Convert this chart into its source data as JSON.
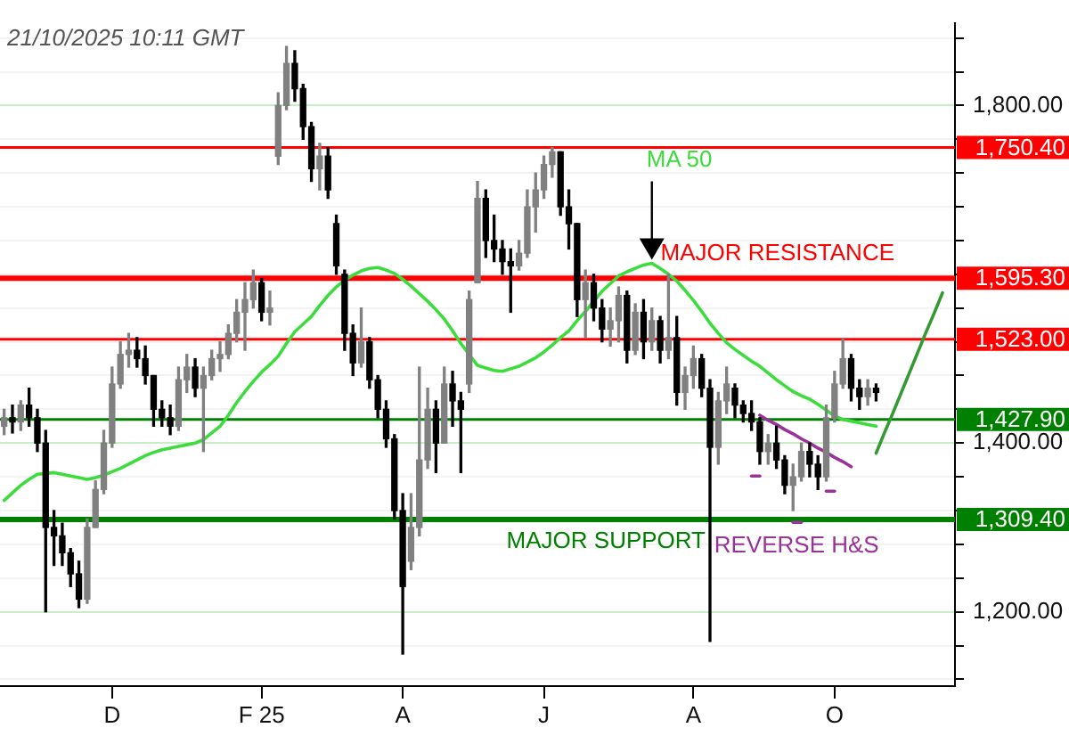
{
  "chart_data": {
    "type": "candlestick",
    "categories": [
      null,
      null,
      null,
      null,
      null,
      null,
      null,
      null,
      null,
      null,
      null,
      null,
      null,
      "D",
      null,
      null,
      null,
      null,
      null,
      null,
      null,
      null,
      null,
      null,
      null,
      null,
      null,
      null,
      null,
      null,
      null,
      "F 25",
      null,
      null,
      null,
      null,
      null,
      null,
      null,
      null,
      null,
      null,
      null,
      null,
      null,
      null,
      null,
      null,
      "A",
      null,
      null,
      null,
      null,
      null,
      null,
      null,
      null,
      null,
      null,
      null,
      null,
      null,
      null,
      null,
      null,
      "J",
      null,
      null,
      null,
      null,
      null,
      null,
      null,
      null,
      null,
      null,
      null,
      null,
      null,
      null,
      null,
      null,
      null,
      "A",
      null,
      null,
      null,
      null,
      null,
      null,
      null,
      null,
      null,
      null,
      null,
      null,
      null,
      null,
      null,
      null,
      "O",
      null,
      null,
      null,
      null,
      null,
      null,
      null,
      null,
      null,
      null,
      null,
      null,
      null,
      null
    ],
    "ohlc": [
      [
        1420,
        1440,
        1410,
        1430
      ],
      [
        1430,
        1445,
        1412,
        1425
      ],
      [
        1425,
        1450,
        1415,
        1445
      ],
      [
        1445,
        1465,
        1420,
        1430
      ],
      [
        1430,
        1440,
        1390,
        1400
      ],
      [
        1400,
        1415,
        1200,
        1300
      ],
      [
        1300,
        1320,
        1255,
        1290
      ],
      [
        1290,
        1305,
        1255,
        1270
      ],
      [
        1270,
        1275,
        1230,
        1245
      ],
      [
        1245,
        1260,
        1205,
        1215
      ],
      [
        1215,
        1310,
        1210,
        1300
      ],
      [
        1300,
        1355,
        1300,
        1345
      ],
      [
        1345,
        1415,
        1340,
        1400
      ],
      [
        1400,
        1490,
        1395,
        1470
      ],
      [
        1470,
        1520,
        1465,
        1505
      ],
      [
        1505,
        1530,
        1490,
        1510
      ],
      [
        1510,
        1525,
        1490,
        1500
      ],
      [
        1500,
        1515,
        1470,
        1480
      ],
      [
        1480,
        1480,
        1420,
        1440
      ],
      [
        1440,
        1450,
        1420,
        1430
      ],
      [
        1430,
        1445,
        1410,
        1420
      ],
      [
        1420,
        1490,
        1415,
        1475
      ],
      [
        1475,
        1505,
        1460,
        1490
      ],
      [
        1490,
        1500,
        1455,
        1465
      ],
      [
        1465,
        1490,
        1390,
        1480
      ],
      [
        1480,
        1510,
        1475,
        1500
      ],
      [
        1500,
        1520,
        1485,
        1505
      ],
      [
        1505,
        1540,
        1500,
        1530
      ],
      [
        1530,
        1570,
        1520,
        1555
      ],
      [
        1555,
        1590,
        1510,
        1570
      ],
      [
        1570,
        1605,
        1560,
        1590
      ],
      [
        1590,
        1595,
        1545,
        1555
      ],
      [
        1555,
        1580,
        1540,
        1560
      ],
      [
        1740,
        1815,
        1730,
        1800
      ],
      [
        1800,
        1870,
        1795,
        1850
      ],
      [
        1850,
        1865,
        1805,
        1820
      ],
      [
        1820,
        1825,
        1760,
        1775
      ],
      [
        1775,
        1780,
        1710,
        1725
      ],
      [
        1725,
        1755,
        1700,
        1740
      ],
      [
        1740,
        1750,
        1690,
        1700
      ],
      [
        1660,
        1670,
        1600,
        1610
      ],
      [
        1600,
        1605,
        1510,
        1530
      ],
      [
        1530,
        1540,
        1480,
        1495
      ],
      [
        1495,
        1560,
        1490,
        1520
      ],
      [
        1520,
        1525,
        1465,
        1475
      ],
      [
        1475,
        1480,
        1430,
        1440
      ],
      [
        1440,
        1450,
        1395,
        1405
      ],
      [
        1405,
        1410,
        1310,
        1320
      ],
      [
        1320,
        1340,
        1150,
        1230
      ],
      [
        1260,
        1340,
        1250,
        1300
      ],
      [
        1300,
        1490,
        1290,
        1380
      ],
      [
        1380,
        1465,
        1370,
        1440
      ],
      [
        1440,
        1450,
        1365,
        1400
      ],
      [
        1400,
        1490,
        1400,
        1470
      ],
      [
        1470,
        1485,
        1420,
        1450
      ],
      [
        1450,
        1460,
        1365,
        1440
      ],
      [
        1470,
        1580,
        1460,
        1570
      ],
      [
        1590,
        1710,
        1590,
        1690
      ],
      [
        1690,
        1700,
        1620,
        1640
      ],
      [
        1640,
        1670,
        1615,
        1630
      ],
      [
        1630,
        1640,
        1600,
        1615
      ],
      [
        1615,
        1630,
        1555,
        1610
      ],
      [
        1610,
        1640,
        1605,
        1625
      ],
      [
        1625,
        1700,
        1620,
        1680
      ],
      [
        1680,
        1720,
        1650,
        1700
      ],
      [
        1700,
        1740,
        1690,
        1730
      ],
      [
        1730,
        1750,
        1715,
        1745
      ],
      [
        1745,
        1745,
        1670,
        1680
      ],
      [
        1680,
        1700,
        1630,
        1660
      ],
      [
        1660,
        1660,
        1550,
        1570
      ],
      [
        1570,
        1605,
        1525,
        1590
      ],
      [
        1590,
        1600,
        1545,
        1560
      ],
      [
        1560,
        1570,
        1520,
        1535
      ],
      [
        1535,
        1560,
        1515,
        1545
      ],
      [
        1545,
        1585,
        1520,
        1575
      ],
      [
        1575,
        1580,
        1495,
        1510
      ],
      [
        1510,
        1565,
        1505,
        1555
      ],
      [
        1555,
        1570,
        1500,
        1520
      ],
      [
        1520,
        1560,
        1510,
        1545
      ],
      [
        1545,
        1550,
        1495,
        1510
      ],
      [
        1510,
        1600,
        1500,
        1525
      ],
      [
        1525,
        1550,
        1445,
        1460
      ],
      [
        1460,
        1490,
        1440,
        1480
      ],
      [
        1480,
        1515,
        1465,
        1500
      ],
      [
        1500,
        1505,
        1455,
        1465
      ],
      [
        1465,
        1475,
        1165,
        1395
      ],
      [
        1395,
        1460,
        1375,
        1450
      ],
      [
        1450,
        1490,
        1435,
        1470
      ],
      [
        1465,
        1470,
        1430,
        1445
      ],
      [
        1445,
        1450,
        1425,
        1435
      ],
      [
        1435,
        1450,
        1415,
        1425
      ],
      [
        1425,
        1430,
        1375,
        1390
      ],
      [
        1390,
        1410,
        1375,
        1400
      ],
      [
        1400,
        1420,
        1370,
        1380
      ],
      [
        1380,
        1385,
        1340,
        1350
      ],
      [
        1350,
        1375,
        1320,
        1360
      ],
      [
        1360,
        1400,
        1355,
        1390
      ],
      [
        1390,
        1400,
        1360,
        1375
      ],
      [
        1375,
        1385,
        1345,
        1360
      ],
      [
        1360,
        1445,
        1355,
        1430
      ],
      [
        1430,
        1485,
        1425,
        1470
      ],
      [
        1470,
        1523,
        1465,
        1500
      ],
      [
        1500,
        1505,
        1450,
        1465
      ],
      [
        1465,
        1475,
        1440,
        1455
      ],
      [
        1455,
        1475,
        1445,
        1465
      ],
      [
        1465,
        1470,
        1450,
        1460
      ],
      null,
      null,
      null,
      null,
      null,
      null,
      null,
      null,
      null
    ],
    "colors": [
      "#808080",
      "#000000",
      "#808080",
      "#000000",
      "#000000",
      "#000000",
      "#000000",
      "#000000",
      "#000000",
      "#000000",
      "#808080",
      "#808080",
      "#808080",
      "#808080",
      "#808080",
      "#808080",
      "#000000",
      "#000000",
      "#000000",
      "#000000",
      "#000000",
      "#808080",
      "#808080",
      "#000000",
      "#808080",
      "#808080",
      "#808080",
      "#808080",
      "#808080",
      "#808080",
      "#808080",
      "#000000",
      "#808080",
      "#808080",
      "#808080",
      "#000000",
      "#000000",
      "#000000",
      "#808080",
      "#000000",
      "#000000",
      "#000000",
      "#000000",
      "#808080",
      "#000000",
      "#000000",
      "#000000",
      "#000000",
      "#000000",
      "#808080",
      "#808080",
      "#808080",
      "#000000",
      "#808080",
      "#000000",
      "#000000",
      "#808080",
      "#808080",
      "#000000",
      "#000000",
      "#000000",
      "#000000",
      "#808080",
      "#808080",
      "#808080",
      "#808080",
      "#808080",
      "#000000",
      "#000000",
      "#000000",
      "#808080",
      "#000000",
      "#000000",
      "#808080",
      "#808080",
      "#000000",
      "#808080",
      "#000000",
      "#808080",
      "#000000",
      "#808080",
      "#000000",
      "#808080",
      "#808080",
      "#000000",
      "#000000",
      "#808080",
      "#808080",
      "#000000",
      "#000000",
      "#000000",
      "#000000",
      "#808080",
      "#000000",
      "#000000",
      "#808080",
      "#808080",
      "#000000",
      "#000000",
      "#808080",
      "#808080",
      "#808080",
      "#000000",
      "#000000",
      "#808080",
      "#000000",
      null,
      null,
      null,
      null,
      null,
      null,
      null,
      null,
      null
    ],
    "series": [
      {
        "type": "line",
        "name": "MA 50",
        "color": "#3ddc3d",
        "values": [
          1332,
          1341,
          1350,
          1357,
          1363,
          1364,
          1365,
          1363,
          1361,
          1359,
          1357,
          1359,
          1362,
          1366,
          1370,
          1375,
          1380,
          1385,
          1389,
          1392,
          1394,
          1396,
          1398,
          1400,
          1404,
          1412,
          1420,
          1433,
          1448,
          1461,
          1473,
          1484,
          1493,
          1503,
          1518,
          1532,
          1541,
          1550,
          1563,
          1575,
          1585,
          1593,
          1599,
          1604,
          1607,
          1608,
          1605,
          1601,
          1594,
          1586,
          1577,
          1568,
          1558,
          1547,
          1533,
          1518,
          1505,
          1492,
          1489,
          1486,
          1485,
          1488,
          1491,
          1496,
          1501,
          1508,
          1516,
          1525,
          1533,
          1545,
          1556,
          1568,
          1580,
          1589,
          1598,
          1603,
          1607,
          1611,
          1613,
          1607,
          1600,
          1592,
          1581,
          1569,
          1556,
          1542,
          1530,
          1519,
          1511,
          1504,
          1497,
          1491,
          1483,
          1475,
          1468,
          1461,
          1456,
          1452,
          1446,
          1439,
          1432,
          1428,
          1426,
          1424,
          1422,
          1420,
          null,
          null,
          null,
          null,
          null,
          null,
          null,
          null,
          null
        ]
      },
      {
        "type": "line",
        "color": "#993399",
        "values": [
          null,
          null,
          null,
          null,
          null,
          null,
          null,
          null,
          null,
          null,
          null,
          null,
          null,
          null,
          null,
          null,
          null,
          null,
          null,
          null,
          null,
          null,
          null,
          null,
          null,
          null,
          null,
          null,
          null,
          null,
          null,
          null,
          null,
          null,
          null,
          null,
          null,
          null,
          null,
          null,
          null,
          null,
          null,
          null,
          null,
          null,
          null,
          null,
          null,
          null,
          null,
          null,
          null,
          null,
          null,
          null,
          null,
          null,
          null,
          null,
          null,
          null,
          null,
          null,
          null,
          null,
          null,
          null,
          null,
          null,
          null,
          null,
          null,
          null,
          null,
          null,
          null,
          null,
          null,
          null,
          null,
          null,
          null,
          null,
          null,
          null,
          null,
          null,
          null,
          null,
          null,
          1433,
          1427,
          1422,
          1416,
          1411,
          1405,
          1400,
          1394,
          1389,
          1383,
          1378,
          1372,
          null,
          null,
          null,
          null,
          null,
          null,
          null,
          null,
          null,
          null,
          null,
          null
        ]
      },
      {
        "type": "line",
        "color": "#993399",
        "values": [
          null,
          null,
          null,
          null,
          null,
          null,
          null,
          null,
          null,
          null,
          null,
          null,
          null,
          null,
          null,
          null,
          null,
          null,
          null,
          null,
          null,
          null,
          null,
          null,
          null,
          null,
          null,
          null,
          null,
          null,
          null,
          null,
          null,
          null,
          null,
          null,
          null,
          null,
          null,
          null,
          null,
          null,
          null,
          null,
          null,
          null,
          null,
          null,
          null,
          null,
          null,
          null,
          null,
          null,
          null,
          null,
          null,
          null,
          null,
          null,
          null,
          null,
          null,
          null,
          null,
          null,
          null,
          null,
          null,
          null,
          null,
          null,
          null,
          null,
          null,
          null,
          null,
          null,
          null,
          null,
          null,
          null,
          null,
          null,
          null,
          null,
          null,
          null,
          null,
          null,
          1361,
          1361,
          null,
          null,
          null,
          null,
          null,
          null,
          null,
          null,
          null,
          null,
          null,
          null,
          null,
          null,
          null,
          null,
          null,
          null,
          null,
          null,
          null,
          null,
          null
        ]
      },
      {
        "type": "line",
        "name": "REVERSE H&S",
        "color": "#993399",
        "values": [
          null,
          null,
          null,
          null,
          null,
          null,
          null,
          null,
          null,
          null,
          null,
          null,
          null,
          null,
          null,
          null,
          null,
          null,
          null,
          null,
          null,
          null,
          null,
          null,
          null,
          null,
          null,
          null,
          null,
          null,
          null,
          null,
          null,
          null,
          null,
          null,
          null,
          null,
          null,
          null,
          null,
          null,
          null,
          null,
          null,
          null,
          null,
          null,
          null,
          null,
          null,
          null,
          null,
          null,
          null,
          null,
          null,
          null,
          null,
          null,
          null,
          null,
          null,
          null,
          null,
          null,
          null,
          null,
          null,
          null,
          null,
          null,
          null,
          null,
          null,
          null,
          null,
          null,
          null,
          null,
          null,
          null,
          null,
          null,
          null,
          null,
          null,
          null,
          null,
          null,
          null,
          null,
          null,
          null,
          null,
          1306,
          1306,
          null,
          null,
          null,
          null,
          null,
          null,
          null,
          null,
          null,
          null,
          null,
          null,
          null,
          null,
          null,
          null,
          null,
          null
        ]
      },
      {
        "type": "line",
        "color": "#993399",
        "values": [
          null,
          null,
          null,
          null,
          null,
          null,
          null,
          null,
          null,
          null,
          null,
          null,
          null,
          null,
          null,
          null,
          null,
          null,
          null,
          null,
          null,
          null,
          null,
          null,
          null,
          null,
          null,
          null,
          null,
          null,
          null,
          null,
          null,
          null,
          null,
          null,
          null,
          null,
          null,
          null,
          null,
          null,
          null,
          null,
          null,
          null,
          null,
          null,
          null,
          null,
          null,
          null,
          null,
          null,
          null,
          null,
          null,
          null,
          null,
          null,
          null,
          null,
          null,
          null,
          null,
          null,
          null,
          null,
          null,
          null,
          null,
          null,
          null,
          null,
          null,
          null,
          null,
          null,
          null,
          null,
          null,
          null,
          null,
          null,
          null,
          null,
          null,
          null,
          null,
          null,
          null,
          null,
          null,
          null,
          null,
          null,
          null,
          null,
          null,
          1343,
          1343,
          null,
          null,
          null,
          null,
          null,
          null,
          null,
          null,
          null,
          null,
          null,
          null,
          null,
          null
        ]
      },
      {
        "type": "line",
        "color": "#339933",
        "values": [
          null,
          null,
          null,
          null,
          null,
          null,
          null,
          null,
          null,
          null,
          null,
          null,
          null,
          null,
          null,
          null,
          null,
          null,
          null,
          null,
          null,
          null,
          null,
          null,
          null,
          null,
          null,
          null,
          null,
          null,
          null,
          null,
          null,
          null,
          null,
          null,
          null,
          null,
          null,
          null,
          null,
          null,
          null,
          null,
          null,
          null,
          null,
          null,
          null,
          null,
          null,
          null,
          null,
          null,
          null,
          null,
          null,
          null,
          null,
          null,
          null,
          null,
          null,
          null,
          null,
          null,
          null,
          null,
          null,
          null,
          null,
          null,
          null,
          null,
          null,
          null,
          null,
          null,
          null,
          null,
          null,
          null,
          null,
          null,
          null,
          null,
          null,
          null,
          null,
          null,
          null,
          null,
          null,
          null,
          null,
          null,
          null,
          null,
          null,
          null,
          null,
          null,
          null,
          null,
          null,
          1388,
          1412,
          1435,
          1459,
          1483,
          1507,
          1531,
          1554,
          1578,
          null
        ]
      }
    ],
    "ylim": [
      1112,
      1898
    ],
    "yticks": [
      {
        "value": 1120,
        "label": null
      },
      {
        "value": 1160,
        "label": null
      },
      {
        "value": 1200,
        "label": "1,200.00"
      },
      {
        "value": 1240,
        "label": null
      },
      {
        "value": 1280,
        "label": null
      },
      {
        "value": 1320,
        "label": null
      },
      {
        "value": 1360,
        "label": null
      },
      {
        "value": 1400,
        "label": "1,400.00"
      },
      {
        "value": 1440,
        "label": null
      },
      {
        "value": 1480,
        "label": null
      },
      {
        "value": 1520,
        "label": null
      },
      {
        "value": 1560,
        "label": null
      },
      {
        "value": 1600,
        "label": null
      },
      {
        "value": 1640,
        "label": null
      },
      {
        "value": 1680,
        "label": null
      },
      {
        "value": 1720,
        "label": null
      },
      {
        "value": 1760,
        "label": null
      },
      {
        "value": 1800,
        "label": "1,800.00"
      },
      {
        "value": 1840,
        "label": null
      },
      {
        "value": 1880,
        "label": null
      }
    ],
    "grid": "y",
    "ref_lines": [
      {
        "axis": "y",
        "value": 1750.4,
        "label": "1,750.40",
        "color": "#ff0000"
      },
      {
        "axis": "y",
        "value": 1595.3,
        "label": "1,595.30",
        "color": "#ff0000"
      },
      {
        "axis": "y",
        "value": 1523,
        "label": "1,523.00",
        "color": "#ff0000"
      },
      {
        "axis": "y",
        "value": 1427.9,
        "label": "1,427.90",
        "color": "#008000"
      },
      {
        "axis": "y",
        "value": 1309.4,
        "label": "1,309.40",
        "color": "#008000"
      }
    ],
    "annotations": [
      "21/10/2025 10:11 GMT",
      {
        "text": "MAJOR RESISTANCE",
        "y": 1595.3
      },
      {
        "text": "MAJOR SUPPORT",
        "y": 1309.4
      }
    ]
  }
}
